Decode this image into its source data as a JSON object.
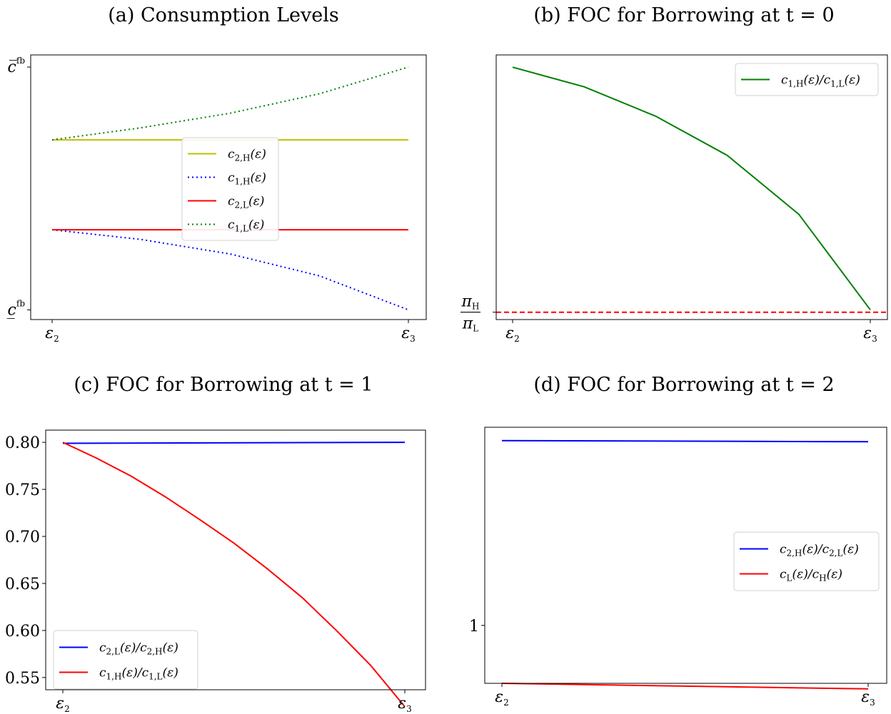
{
  "chart_data": [
    {
      "id": "a",
      "type": "line",
      "title": "(a) Consumption Levels",
      "xticks": [
        "ε2",
        "ε3"
      ],
      "yticks": [
        {
          "label": "c_fb_bar",
          "text": "c̅",
          "sup": "fb",
          "value": 1.0
        },
        {
          "label": "c_fb_under",
          "text": "c̲",
          "sup": "fb",
          "value": 0.0
        }
      ],
      "xlim": [
        0,
        1
      ],
      "ylim": [
        -0.04,
        1.05
      ],
      "legend": "center",
      "series": [
        {
          "name": "c2,H(ε)",
          "main": "c",
          "sub": "2,H",
          "arg": "(ε)",
          "color": "#bfbf00",
          "dash": "solid",
          "x": [
            0,
            1
          ],
          "y": [
            0.7,
            0.7
          ]
        },
        {
          "name": "c1,H(ε)",
          "main": "c",
          "sub": "1,H",
          "arg": "(ε)",
          "color": "#0000ff",
          "dash": "dotted",
          "x": [
            0,
            0.25,
            0.5,
            0.75,
            1
          ],
          "y": [
            0.33,
            0.29,
            0.23,
            0.14,
            0.0
          ]
        },
        {
          "name": "c2,L(ε)",
          "main": "c",
          "sub": "2,L",
          "arg": "(ε)",
          "color": "#ff0000",
          "dash": "solid",
          "x": [
            0,
            1
          ],
          "y": [
            0.33,
            0.33
          ]
        },
        {
          "name": "c1,L(ε)",
          "main": "c",
          "sub": "1,L",
          "arg": "(ε)",
          "color": "#008000",
          "dash": "dotted",
          "x": [
            0,
            0.25,
            0.5,
            0.75,
            1
          ],
          "y": [
            0.7,
            0.75,
            0.81,
            0.89,
            1.0
          ]
        }
      ]
    },
    {
      "id": "b",
      "type": "line",
      "title": "(b) FOC for Borrowing at t = 0",
      "xticks": [
        "ε2",
        "ε3"
      ],
      "yticks": [
        {
          "label": "pi_ratio",
          "num": "πH",
          "den": "πL",
          "value": 0.0
        }
      ],
      "xlim": [
        0,
        1
      ],
      "ylim": [
        -0.03,
        1.05
      ],
      "legend": "top-right",
      "series": [
        {
          "name": "c1,H(ε)/c1,L(ε)",
          "main": "c",
          "sub": "1,H",
          "arg": "(ε)/",
          "main2": "c",
          "sub2": "1,L",
          "arg2": "(ε)",
          "color": "#008000",
          "dash": "solid",
          "x": [
            0,
            0.2,
            0.4,
            0.6,
            0.8,
            1
          ],
          "y": [
            1.0,
            0.92,
            0.8,
            0.64,
            0.4,
            0.01
          ]
        },
        {
          "name": "πH/πL",
          "color": "#ff0000",
          "dash": "dashed",
          "hline": 0.0,
          "inLegend": false
        }
      ]
    },
    {
      "id": "c",
      "type": "line",
      "title": "(c) FOC for Borrowing at t = 1",
      "xticks": [
        "ε2",
        "ε3"
      ],
      "yticks": [
        {
          "text": "0.80",
          "value": 0.8
        },
        {
          "text": "0.75",
          "value": 0.75
        },
        {
          "text": "0.70",
          "value": 0.7
        },
        {
          "text": "0.65",
          "value": 0.65
        },
        {
          "text": "0.60",
          "value": 0.6
        },
        {
          "text": "0.55",
          "value": 0.55
        }
      ],
      "xlim": [
        0,
        1
      ],
      "ylim": [
        0.537,
        0.813
      ],
      "legend": "bottom-left",
      "series": [
        {
          "name": "c2,L(ε)/c2,H(ε)",
          "main": "c",
          "sub": "2,L",
          "arg": "(ε)/",
          "main2": "c",
          "sub2": "2,H",
          "arg2": "(ε)",
          "color": "#0000ff",
          "dash": "solid",
          "x": [
            0,
            1
          ],
          "y": [
            0.799,
            0.8
          ]
        },
        {
          "name": "c1,H(ε)/c1,L(ε)",
          "main": "c",
          "sub": "1,H",
          "arg": "(ε)/",
          "main2": "c",
          "sub2": "1,L",
          "arg2": "(ε)",
          "color": "#ff0000",
          "dash": "solid",
          "x": [
            0,
            0.1,
            0.2,
            0.3,
            0.4,
            0.5,
            0.6,
            0.7,
            0.8,
            0.9,
            1
          ],
          "y": [
            0.8,
            0.783,
            0.764,
            0.742,
            0.718,
            0.693,
            0.665,
            0.635,
            0.6,
            0.563,
            0.519
          ]
        }
      ]
    },
    {
      "id": "d",
      "type": "line",
      "title": "(d) FOC for Borrowing at t = 2",
      "xticks": [
        "ε2",
        "ε3"
      ],
      "yticks": [
        {
          "text": "1",
          "value": 1.0
        }
      ],
      "xlim": [
        0,
        1
      ],
      "ylim": [
        0.948,
        1.178
      ],
      "legend": "center-right",
      "series": [
        {
          "name": "c2,H(ε)/c2,L(ε)",
          "main": "c",
          "sub": "2,H",
          "arg": "(ε)/",
          "main2": "c",
          "sub2": "2,L",
          "arg2": "(ε)",
          "color": "#0000ff",
          "dash": "solid",
          "x": [
            0,
            1
          ],
          "y": [
            1.166,
            1.165
          ]
        },
        {
          "name": "cL(ε)/cH(ε)",
          "main": "c",
          "sub": "L",
          "arg": "(ε)/",
          "main2": "c",
          "sub2": "H",
          "arg2": "(ε)",
          "color": "#ff0000",
          "dash": "solid",
          "x": [
            0,
            1
          ],
          "y": [
            0.948,
            0.943
          ]
        }
      ]
    }
  ]
}
